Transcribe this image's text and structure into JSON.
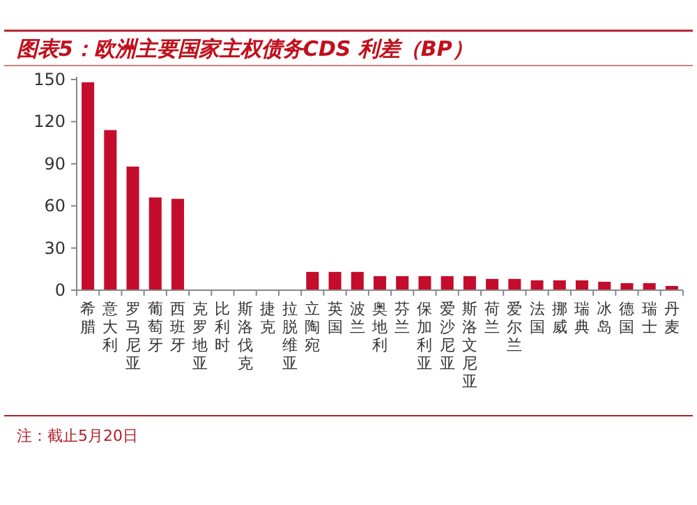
{
  "chart_data": {
    "type": "bar",
    "title": "图表5：欧洲主要国家主权债务CDS 利差（BP）",
    "categories": [
      "希腊",
      "意大利",
      "罗马尼亚",
      "葡萄牙",
      "西班牙",
      "克罗地亚",
      "比利时",
      "斯洛伐克",
      "捷克",
      "拉脱维亚",
      "立陶宛",
      "英国",
      "波兰",
      "奥地利",
      "芬兰",
      "保加利亚",
      "爱沙尼亚",
      "斯洛文尼亚",
      "荷兰",
      "爱尔兰",
      "法国",
      "挪威",
      "瑞典",
      "冰岛",
      "德国",
      "瑞士",
      "丹麦"
    ],
    "values": [
      148,
      114,
      88,
      66,
      65,
      null,
      null,
      null,
      null,
      null,
      13,
      13,
      13,
      10,
      10,
      10,
      10,
      10,
      8,
      8,
      7,
      7,
      7,
      6,
      5,
      5,
      3
    ],
    "color": "#c40c2c",
    "ylim": [
      0,
      150
    ],
    "yticks": [
      0,
      30,
      60,
      90,
      120,
      150
    ],
    "grid": false,
    "annotations": [
      "注：截止5月20日"
    ]
  }
}
